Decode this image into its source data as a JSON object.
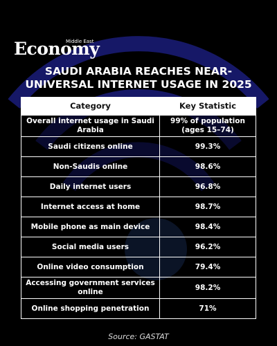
{
  "header": {
    "brand_small": "Middle East",
    "brand": "Economy",
    "title": "SAUDI ARABIA REACHES NEAR-UNIVERSAL INTERNET USAGE IN 2025"
  },
  "table": {
    "columns": [
      "Category",
      "Key Statistic"
    ],
    "rows": [
      [
        "Overall internet usage in Saudi Arabia",
        "99% of population (ages 15–74)"
      ],
      [
        "Saudi citizens online",
        "99.3%"
      ],
      [
        "Non-Saudis online",
        "98.6%"
      ],
      [
        "Daily internet users",
        "96.8%"
      ],
      [
        "Internet access at home",
        "98.7%"
      ],
      [
        "Mobile phone as main device",
        "98.4%"
      ],
      [
        "Social media users",
        "96.2%"
      ],
      [
        "Online video consumption",
        "79.4%"
      ],
      [
        "Accessing government services online",
        "98.2%"
      ],
      [
        "Online shopping penetration",
        "71%"
      ]
    ]
  },
  "source": "Source: GASTAT"
}
